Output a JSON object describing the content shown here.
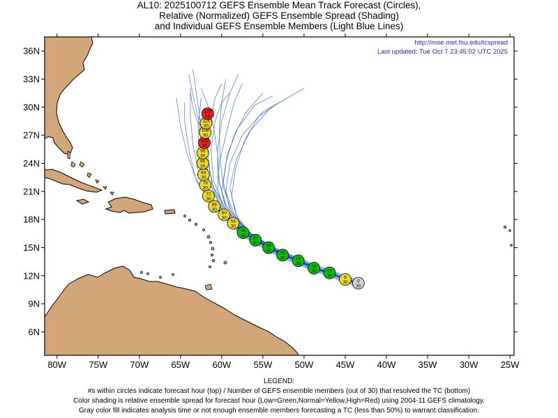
{
  "title": {
    "line1": "AL10: 2025100712 GEFS Ensemble Mean Track Forecast (Circles),",
    "line2": "Relative (Normalized) GEFS Ensemble Spread (Shading)",
    "line3": "and Individual GEFS Ensemble Members (Light Blue Lines)"
  },
  "map": {
    "url": "http://moe.met.fsu.edu/tcspread",
    "last_updated": "Last updated: Tue Oct 7 23:45:02 UTC 2025",
    "lon_range": [
      -81.5,
      -24.5
    ],
    "lat_range": [
      3.5,
      37.5
    ],
    "lon_ticks": [
      {
        "lon": -80,
        "label": "80W"
      },
      {
        "lon": -75,
        "label": "75W"
      },
      {
        "lon": -70,
        "label": "70W"
      },
      {
        "lon": -65,
        "label": "65W"
      },
      {
        "lon": -60,
        "label": "60W"
      },
      {
        "lon": -55,
        "label": "55W"
      },
      {
        "lon": -50,
        "label": "50W"
      },
      {
        "lon": -45,
        "label": "45W"
      },
      {
        "lon": -40,
        "label": "40W"
      },
      {
        "lon": -35,
        "label": "35W"
      },
      {
        "lon": -30,
        "label": "30W"
      },
      {
        "lon": -25,
        "label": "25W"
      }
    ],
    "lat_ticks": [
      {
        "lat": 6,
        "label": "6N"
      },
      {
        "lat": 9,
        "label": "9N"
      },
      {
        "lat": 12,
        "label": "12N"
      },
      {
        "lat": 15,
        "label": "15N"
      },
      {
        "lat": 18,
        "label": "18N"
      },
      {
        "lat": 21,
        "label": "21N"
      },
      {
        "lat": 24,
        "label": "24N"
      },
      {
        "lat": 27,
        "label": "27N"
      },
      {
        "lat": 30,
        "label": "30N"
      },
      {
        "lat": 33,
        "label": "33N"
      },
      {
        "lat": 36,
        "label": "36N"
      }
    ],
    "colors": {
      "land": "#d2a679",
      "track": "#1e2fd6",
      "spread": "#7f9ff2",
      "members": "#3f6fe8",
      "green": "#00c400",
      "yellow": "#eedb21",
      "red": "#ee2020",
      "gray": "#cfcfcf"
    },
    "mean_track": [
      {
        "lon": -43.4,
        "lat": 11.2,
        "hour": "0",
        "members": "30",
        "spread": "gray"
      },
      {
        "lon": -45.0,
        "lat": 11.6,
        "hour": "6",
        "members": "30",
        "spread": "yellow"
      },
      {
        "lon": -46.9,
        "lat": 12.3,
        "hour": "12",
        "members": "30",
        "spread": "green"
      },
      {
        "lon": -48.8,
        "lat": 12.8,
        "hour": "18",
        "members": "30",
        "spread": "green"
      },
      {
        "lon": -50.7,
        "lat": 13.6,
        "hour": "24",
        "members": "30",
        "spread": "green"
      },
      {
        "lon": -52.6,
        "lat": 14.2,
        "hour": "30",
        "members": "30",
        "spread": "green"
      },
      {
        "lon": -54.3,
        "lat": 15.0,
        "hour": "36",
        "members": "30",
        "spread": "green"
      },
      {
        "lon": -55.9,
        "lat": 15.8,
        "hour": "42",
        "members": "30",
        "spread": "green"
      },
      {
        "lon": -57.4,
        "lat": 16.6,
        "hour": "48",
        "members": "30",
        "spread": "green"
      },
      {
        "lon": -58.6,
        "lat": 17.6,
        "hour": "54",
        "members": "30",
        "spread": "yellow"
      },
      {
        "lon": -59.7,
        "lat": 18.5,
        "hour": "60",
        "members": "30",
        "spread": "yellow"
      },
      {
        "lon": -60.9,
        "lat": 19.4,
        "hour": "66",
        "members": "30",
        "spread": "yellow"
      },
      {
        "lon": -61.6,
        "lat": 20.5,
        "hour": "72",
        "members": "30",
        "spread": "yellow"
      },
      {
        "lon": -62.0,
        "lat": 21.7,
        "hour": "78",
        "members": "30",
        "spread": "yellow"
      },
      {
        "lon": -62.2,
        "lat": 22.8,
        "hour": "84",
        "members": "30",
        "spread": "yellow"
      },
      {
        "lon": -62.3,
        "lat": 24.0,
        "hour": "90",
        "members": "30",
        "spread": "yellow"
      },
      {
        "lon": -62.3,
        "lat": 25.1,
        "hour": "96",
        "members": "30",
        "spread": "yellow"
      },
      {
        "lon": -62.1,
        "lat": 26.2,
        "hour": "102",
        "members": "30",
        "spread": "red"
      },
      {
        "lon": -62.0,
        "lat": 27.3,
        "hour": "108",
        "members": "30",
        "spread": "yellow"
      },
      {
        "lon": -61.9,
        "lat": 28.3,
        "hour": "114",
        "members": "30",
        "spread": "yellow"
      },
      {
        "lon": -61.7,
        "lat": 29.3,
        "hour": "120",
        "members": "29",
        "spread": "red"
      }
    ],
    "member_tracks": [
      [
        [
          -43.4,
          11.2
        ],
        [
          -48,
          12.6
        ],
        [
          -53,
          14.5
        ],
        [
          -57,
          16.5
        ],
        [
          -59.5,
          18.5
        ],
        [
          -60.5,
          21
        ],
        [
          -60.3,
          24
        ],
        [
          -59.5,
          27
        ],
        [
          -58.5,
          30.5
        ],
        [
          -57.5,
          32.5
        ]
      ],
      [
        [
          -43.4,
          11.2
        ],
        [
          -48,
          12.7
        ],
        [
          -53,
          14.6
        ],
        [
          -57.5,
          16.8
        ],
        [
          -60,
          19
        ],
        [
          -61.5,
          22
        ],
        [
          -62,
          25
        ],
        [
          -62.5,
          28
        ],
        [
          -63,
          31
        ],
        [
          -63.5,
          34
        ]
      ],
      [
        [
          -43.4,
          11.2
        ],
        [
          -48,
          12.5
        ],
        [
          -53,
          14.3
        ],
        [
          -56.5,
          16.3
        ],
        [
          -58.5,
          18.5
        ],
        [
          -59.5,
          21
        ],
        [
          -59,
          24
        ],
        [
          -57.5,
          27
        ],
        [
          -55,
          29.5
        ],
        [
          -52,
          31
        ]
      ],
      [
        [
          -43.4,
          11.2
        ],
        [
          -48,
          12.6
        ],
        [
          -53,
          14.5
        ],
        [
          -57,
          16.6
        ],
        [
          -59.5,
          19
        ],
        [
          -61,
          21.5
        ],
        [
          -61.8,
          24.5
        ],
        [
          -62.5,
          27.5
        ],
        [
          -63.3,
          30.5
        ],
        [
          -64,
          33.5
        ]
      ],
      [
        [
          -43.4,
          11.2
        ],
        [
          -48,
          12.7
        ],
        [
          -53.5,
          14.8
        ],
        [
          -58,
          17.2
        ],
        [
          -61,
          19.5
        ],
        [
          -63,
          22
        ],
        [
          -64.2,
          25
        ],
        [
          -65,
          28
        ],
        [
          -65.5,
          31
        ]
      ],
      [
        [
          -43.4,
          11.2
        ],
        [
          -48,
          12.6
        ],
        [
          -53,
          14.4
        ],
        [
          -57,
          16.3
        ],
        [
          -59.3,
          18.3
        ],
        [
          -60,
          21
        ],
        [
          -59.5,
          24
        ],
        [
          -58.5,
          27
        ],
        [
          -57,
          29.5
        ],
        [
          -55,
          31.5
        ]
      ],
      [
        [
          -43.4,
          11.2
        ],
        [
          -48,
          12.6
        ],
        [
          -53,
          14.5
        ],
        [
          -57,
          16.6
        ],
        [
          -59.8,
          19
        ],
        [
          -61.2,
          21.8
        ],
        [
          -61.7,
          25
        ],
        [
          -61.5,
          28
        ],
        [
          -60.8,
          31
        ],
        [
          -60,
          32.5
        ]
      ],
      [
        [
          -43.4,
          11.2
        ],
        [
          -48,
          12.5
        ],
        [
          -52.5,
          14.2
        ],
        [
          -56,
          16
        ],
        [
          -58,
          18
        ],
        [
          -58.8,
          20.5
        ],
        [
          -58.3,
          23.5
        ],
        [
          -57.2,
          26.5
        ],
        [
          -55.5,
          29
        ],
        [
          -53,
          30.5
        ]
      ],
      [
        [
          -43.4,
          11.2
        ],
        [
          -48,
          12.7
        ],
        [
          -53.5,
          14.8
        ],
        [
          -58.3,
          17.3
        ],
        [
          -61.5,
          19.8
        ],
        [
          -63.2,
          22.5
        ],
        [
          -64,
          25.5
        ],
        [
          -64.5,
          28.5
        ],
        [
          -64.5,
          30.5
        ]
      ],
      [
        [
          -43.4,
          11.2
        ],
        [
          -48,
          12.6
        ],
        [
          -53,
          14.5
        ],
        [
          -57.2,
          16.7
        ],
        [
          -60,
          19.2
        ],
        [
          -61.5,
          22
        ],
        [
          -62.2,
          25
        ],
        [
          -62.8,
          28
        ],
        [
          -63.5,
          30
        ],
        [
          -63.8,
          31.5
        ]
      ],
      [
        [
          -43.4,
          11.2
        ],
        [
          -48,
          12.5
        ],
        [
          -52.5,
          14.3
        ],
        [
          -56.2,
          16.2
        ],
        [
          -58.3,
          18.5
        ],
        [
          -59,
          21.5
        ],
        [
          -58.2,
          24.5
        ],
        [
          -56.5,
          27.5
        ],
        [
          -54,
          30
        ],
        [
          -50,
          32
        ]
      ],
      [
        [
          -43.4,
          11.2
        ],
        [
          -48,
          12.6
        ],
        [
          -53,
          14.5
        ],
        [
          -57,
          16.8
        ],
        [
          -59.5,
          19.5
        ],
        [
          -60.5,
          22.5
        ],
        [
          -60.5,
          25.5
        ],
        [
          -60,
          28.5
        ],
        [
          -59,
          31.5
        ],
        [
          -58,
          33.5
        ]
      ],
      [
        [
          -43.4,
          11.2
        ],
        [
          -48,
          12.7
        ],
        [
          -53.2,
          14.7
        ],
        [
          -57.8,
          17
        ],
        [
          -60.8,
          19.5
        ],
        [
          -62.3,
          22.3
        ],
        [
          -62.8,
          25.3
        ],
        [
          -62.8,
          28.3
        ],
        [
          -62.5,
          31
        ]
      ],
      [
        [
          -43.4,
          11.2
        ],
        [
          -48,
          12.6
        ],
        [
          -52.8,
          14.4
        ],
        [
          -56.8,
          16.5
        ],
        [
          -59,
          19
        ],
        [
          -59.8,
          22
        ],
        [
          -59.3,
          25
        ],
        [
          -58,
          27.8
        ],
        [
          -56,
          30.2
        ],
        [
          -53.8,
          31.2
        ]
      ],
      [
        [
          -43.4,
          11.2
        ],
        [
          -48,
          12.5
        ],
        [
          -52.8,
          14.3
        ],
        [
          -56.5,
          16.4
        ],
        [
          -58.8,
          18.8
        ],
        [
          -59.8,
          21.5
        ],
        [
          -60.2,
          24.5
        ],
        [
          -60.3,
          27.5
        ],
        [
          -60,
          30.5
        ],
        [
          -59.5,
          33
        ]
      ],
      [
        [
          -43.4,
          11.2
        ],
        [
          -48,
          12.7
        ],
        [
          -53.3,
          14.8
        ],
        [
          -58,
          17.4
        ],
        [
          -61.3,
          20
        ],
        [
          -62.8,
          23
        ],
        [
          -63.5,
          26
        ],
        [
          -63.8,
          29
        ],
        [
          -63.8,
          32
        ]
      ],
      [
        [
          -43.4,
          11.2
        ],
        [
          -48,
          12.6
        ],
        [
          -53,
          14.5
        ],
        [
          -57.1,
          16.7
        ],
        [
          -59.7,
          19.3
        ],
        [
          -61,
          22.2
        ],
        [
          -61.3,
          25.5
        ],
        [
          -60.8,
          28.5
        ],
        [
          -60,
          30.5
        ],
        [
          -59,
          31.5
        ]
      ],
      [
        [
          -43.4,
          11.2
        ],
        [
          -48,
          12.6
        ],
        [
          -52.9,
          14.5
        ],
        [
          -56.8,
          16.6
        ],
        [
          -59.3,
          19
        ],
        [
          -60.3,
          22
        ],
        [
          -60.5,
          25
        ],
        [
          -61,
          28
        ],
        [
          -61.8,
          30.5
        ],
        [
          -62.5,
          32
        ]
      ]
    ]
  },
  "legend": {
    "heading": "LEGEND:",
    "line1": "#s within circles indicate forecast hour (top) / Number of GEFS ensemble members (out of 30) that resolved the TC (bottom)",
    "line2": "Color shading is relative ensemble spread for forecast hour (Low=Green,Normal=Yellow,High=Red) using 2004-11 GEFS climatology.",
    "line3": "Gray color fill indicates analysis time or not enough ensemble members forecasting a TC (less than 50%) to warrant classification."
  }
}
